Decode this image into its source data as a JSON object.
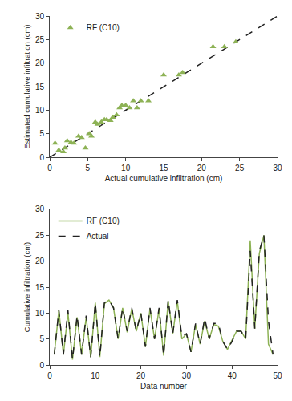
{
  "chart_data": [
    {
      "type": "scatter",
      "xlabel": "Actual cumulative infiltration (cm)",
      "ylabel": "Estimated cumulative infiltration (cm)",
      "series": [
        {
          "type": "line",
          "x": [
            0,
            30
          ],
          "values": [
            0,
            30
          ],
          "color": "#222222",
          "line_style": "dashed"
        },
        {
          "type": "scatter",
          "name": "RF (C10)",
          "color": "#8db255",
          "marker": "triangle-up",
          "x": [
            0.7,
            1.2,
            1.8,
            2.0,
            2.3,
            2.8,
            3.2,
            3.8,
            4.2,
            4.7,
            5.2,
            5.5,
            6.0,
            6.3,
            6.8,
            7.2,
            7.5,
            8.0,
            8.3,
            8.8,
            9.2,
            9.5,
            10.0,
            10.5,
            11.0,
            11.5,
            12.0,
            13.0,
            15.0,
            17.0,
            17.5,
            21.5,
            23.0,
            24.5
          ],
          "values": [
            3.0,
            1.5,
            1.2,
            2.0,
            3.5,
            3.2,
            3.0,
            4.5,
            4.2,
            2.0,
            5.0,
            4.5,
            7.5,
            7.0,
            7.5,
            8.0,
            8.0,
            7.8,
            8.5,
            9.0,
            10.5,
            11.0,
            11.0,
            10.5,
            12.0,
            10.5,
            12.0,
            12.0,
            17.5,
            17.5,
            18.0,
            23.5,
            23.5,
            24.5
          ]
        }
      ],
      "xlim": [
        0,
        30
      ],
      "ylim": [
        0,
        30
      ],
      "xticks": [
        0,
        5,
        10,
        15,
        20,
        25,
        30
      ],
      "yticks": [
        0,
        5,
        10,
        15,
        20,
        25,
        30
      ],
      "grid": false,
      "legend": "upper left"
    },
    {
      "type": "line",
      "xlabel": "Data number",
      "ylabel": "Cumulative infiltration (cm)",
      "x": [
        1,
        2,
        3,
        4,
        5,
        6,
        7,
        8,
        9,
        10,
        11,
        12,
        13,
        14,
        15,
        16,
        17,
        18,
        19,
        20,
        21,
        22,
        23,
        24,
        25,
        26,
        27,
        28,
        29,
        30,
        31,
        32,
        33,
        34,
        35,
        36,
        37,
        38,
        39,
        40,
        41,
        42,
        43,
        44,
        45,
        46,
        47,
        48,
        49
      ],
      "series": [
        {
          "name": "RF (C10)",
          "color": "#8db255",
          "line_style": "solid",
          "values": [
            2.0,
            10.5,
            2.0,
            10.0,
            1.0,
            9.2,
            2.0,
            9.2,
            1.5,
            12.0,
            1.5,
            11.8,
            12.5,
            11.0,
            5.0,
            11.0,
            6.3,
            10.8,
            6.5,
            10.0,
            3.5,
            10.8,
            5.0,
            10.8,
            1.8,
            12.3,
            6.0,
            12.3,
            5.0,
            6.0,
            2.5,
            7.8,
            4.0,
            8.5,
            5.0,
            7.8,
            7.5,
            4.5,
            3.0,
            4.8,
            6.5,
            6.5,
            5.0,
            24.0,
            7.0,
            21.5,
            25.0,
            4.0,
            2.0
          ]
        },
        {
          "name": "Actual",
          "color": "#222222",
          "line_style": "dashed",
          "values": [
            2.0,
            10.5,
            2.0,
            10.5,
            1.0,
            9.5,
            2.0,
            9.5,
            1.5,
            12.0,
            1.5,
            12.0,
            12.5,
            11.0,
            5.0,
            11.0,
            6.5,
            11.0,
            6.5,
            10.0,
            3.5,
            11.0,
            5.0,
            11.0,
            1.8,
            12.5,
            6.0,
            12.5,
            5.5,
            6.0,
            2.5,
            8.0,
            4.0,
            9.0,
            5.0,
            8.0,
            8.0,
            4.5,
            3.0,
            4.5,
            6.5,
            6.5,
            5.0,
            22.0,
            7.0,
            22.0,
            25.0,
            8.5,
            2.0
          ]
        }
      ],
      "xlim": [
        0,
        50
      ],
      "ylim": [
        0,
        30
      ],
      "xticks": [
        0,
        10,
        20,
        30,
        40,
        50
      ],
      "yticks": [
        0,
        5,
        10,
        15,
        20,
        25,
        30
      ],
      "grid": false,
      "legend": "upper left"
    }
  ]
}
